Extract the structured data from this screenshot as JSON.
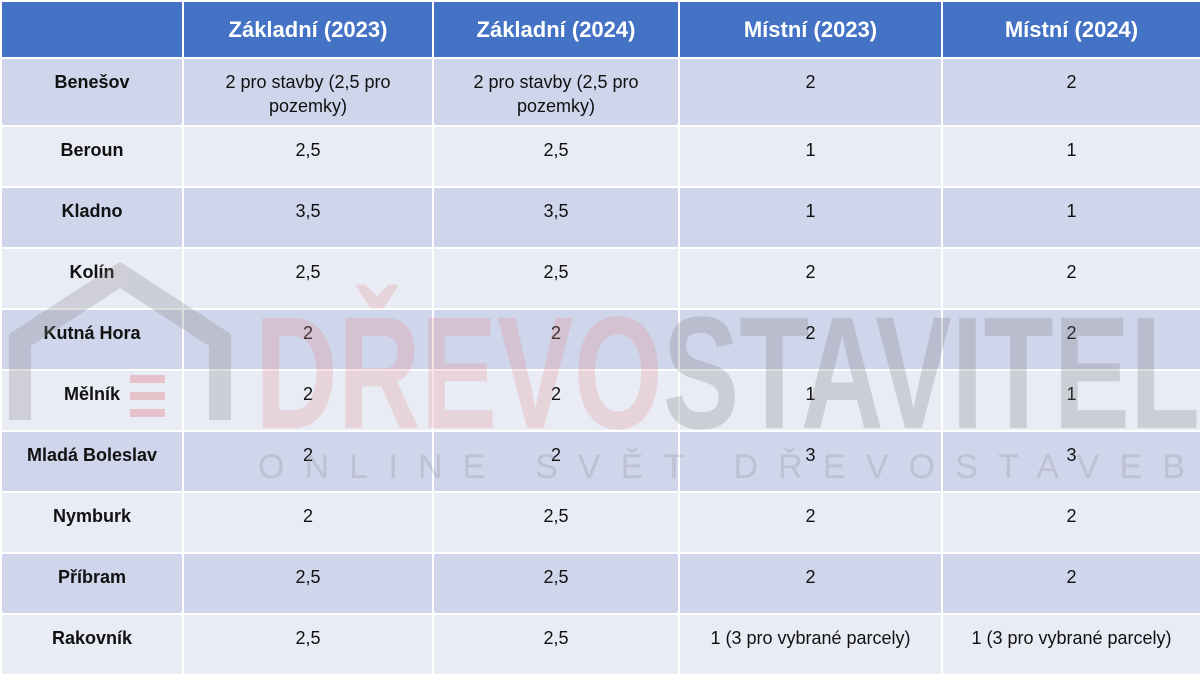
{
  "table": {
    "header": [
      "Základní (2023)",
      "Základní (2024)",
      "Místní (2023)",
      "Místní (2024)"
    ],
    "rows": [
      [
        "Benešov",
        "2 pro stavby (2,5 pro pozemky)",
        "2 pro stavby (2,5 pro pozemky)",
        "2",
        "2"
      ],
      [
        "Beroun",
        "2,5",
        "2,5",
        "1",
        "1"
      ],
      [
        "Kladno",
        "3,5",
        "3,5",
        "1",
        "1"
      ],
      [
        "Kolín",
        "2,5",
        "2,5",
        "2",
        "2"
      ],
      [
        "Kutná Hora",
        "2",
        "2",
        "2",
        "2"
      ],
      [
        "Mělník",
        "2",
        "2",
        "1",
        "1"
      ],
      [
        "Mladá Boleslav",
        "2",
        "2",
        "3",
        "3"
      ],
      [
        "Nymburk",
        "2",
        "2,5",
        "2",
        "2"
      ],
      [
        "Příbram",
        "2,5",
        "2,5",
        "2",
        "2"
      ],
      [
        "Rakovník",
        "2,5",
        "2,5",
        "1 (3 pro vybrané parcely)",
        "1 (3 pro vybrané parcely)"
      ]
    ]
  },
  "watermark": {
    "title_part1": "DŘEVO",
    "title_part2": "STAVITEL",
    "subtitle": "ONLINE SVĚT DŘEVOSTAVEB"
  }
}
